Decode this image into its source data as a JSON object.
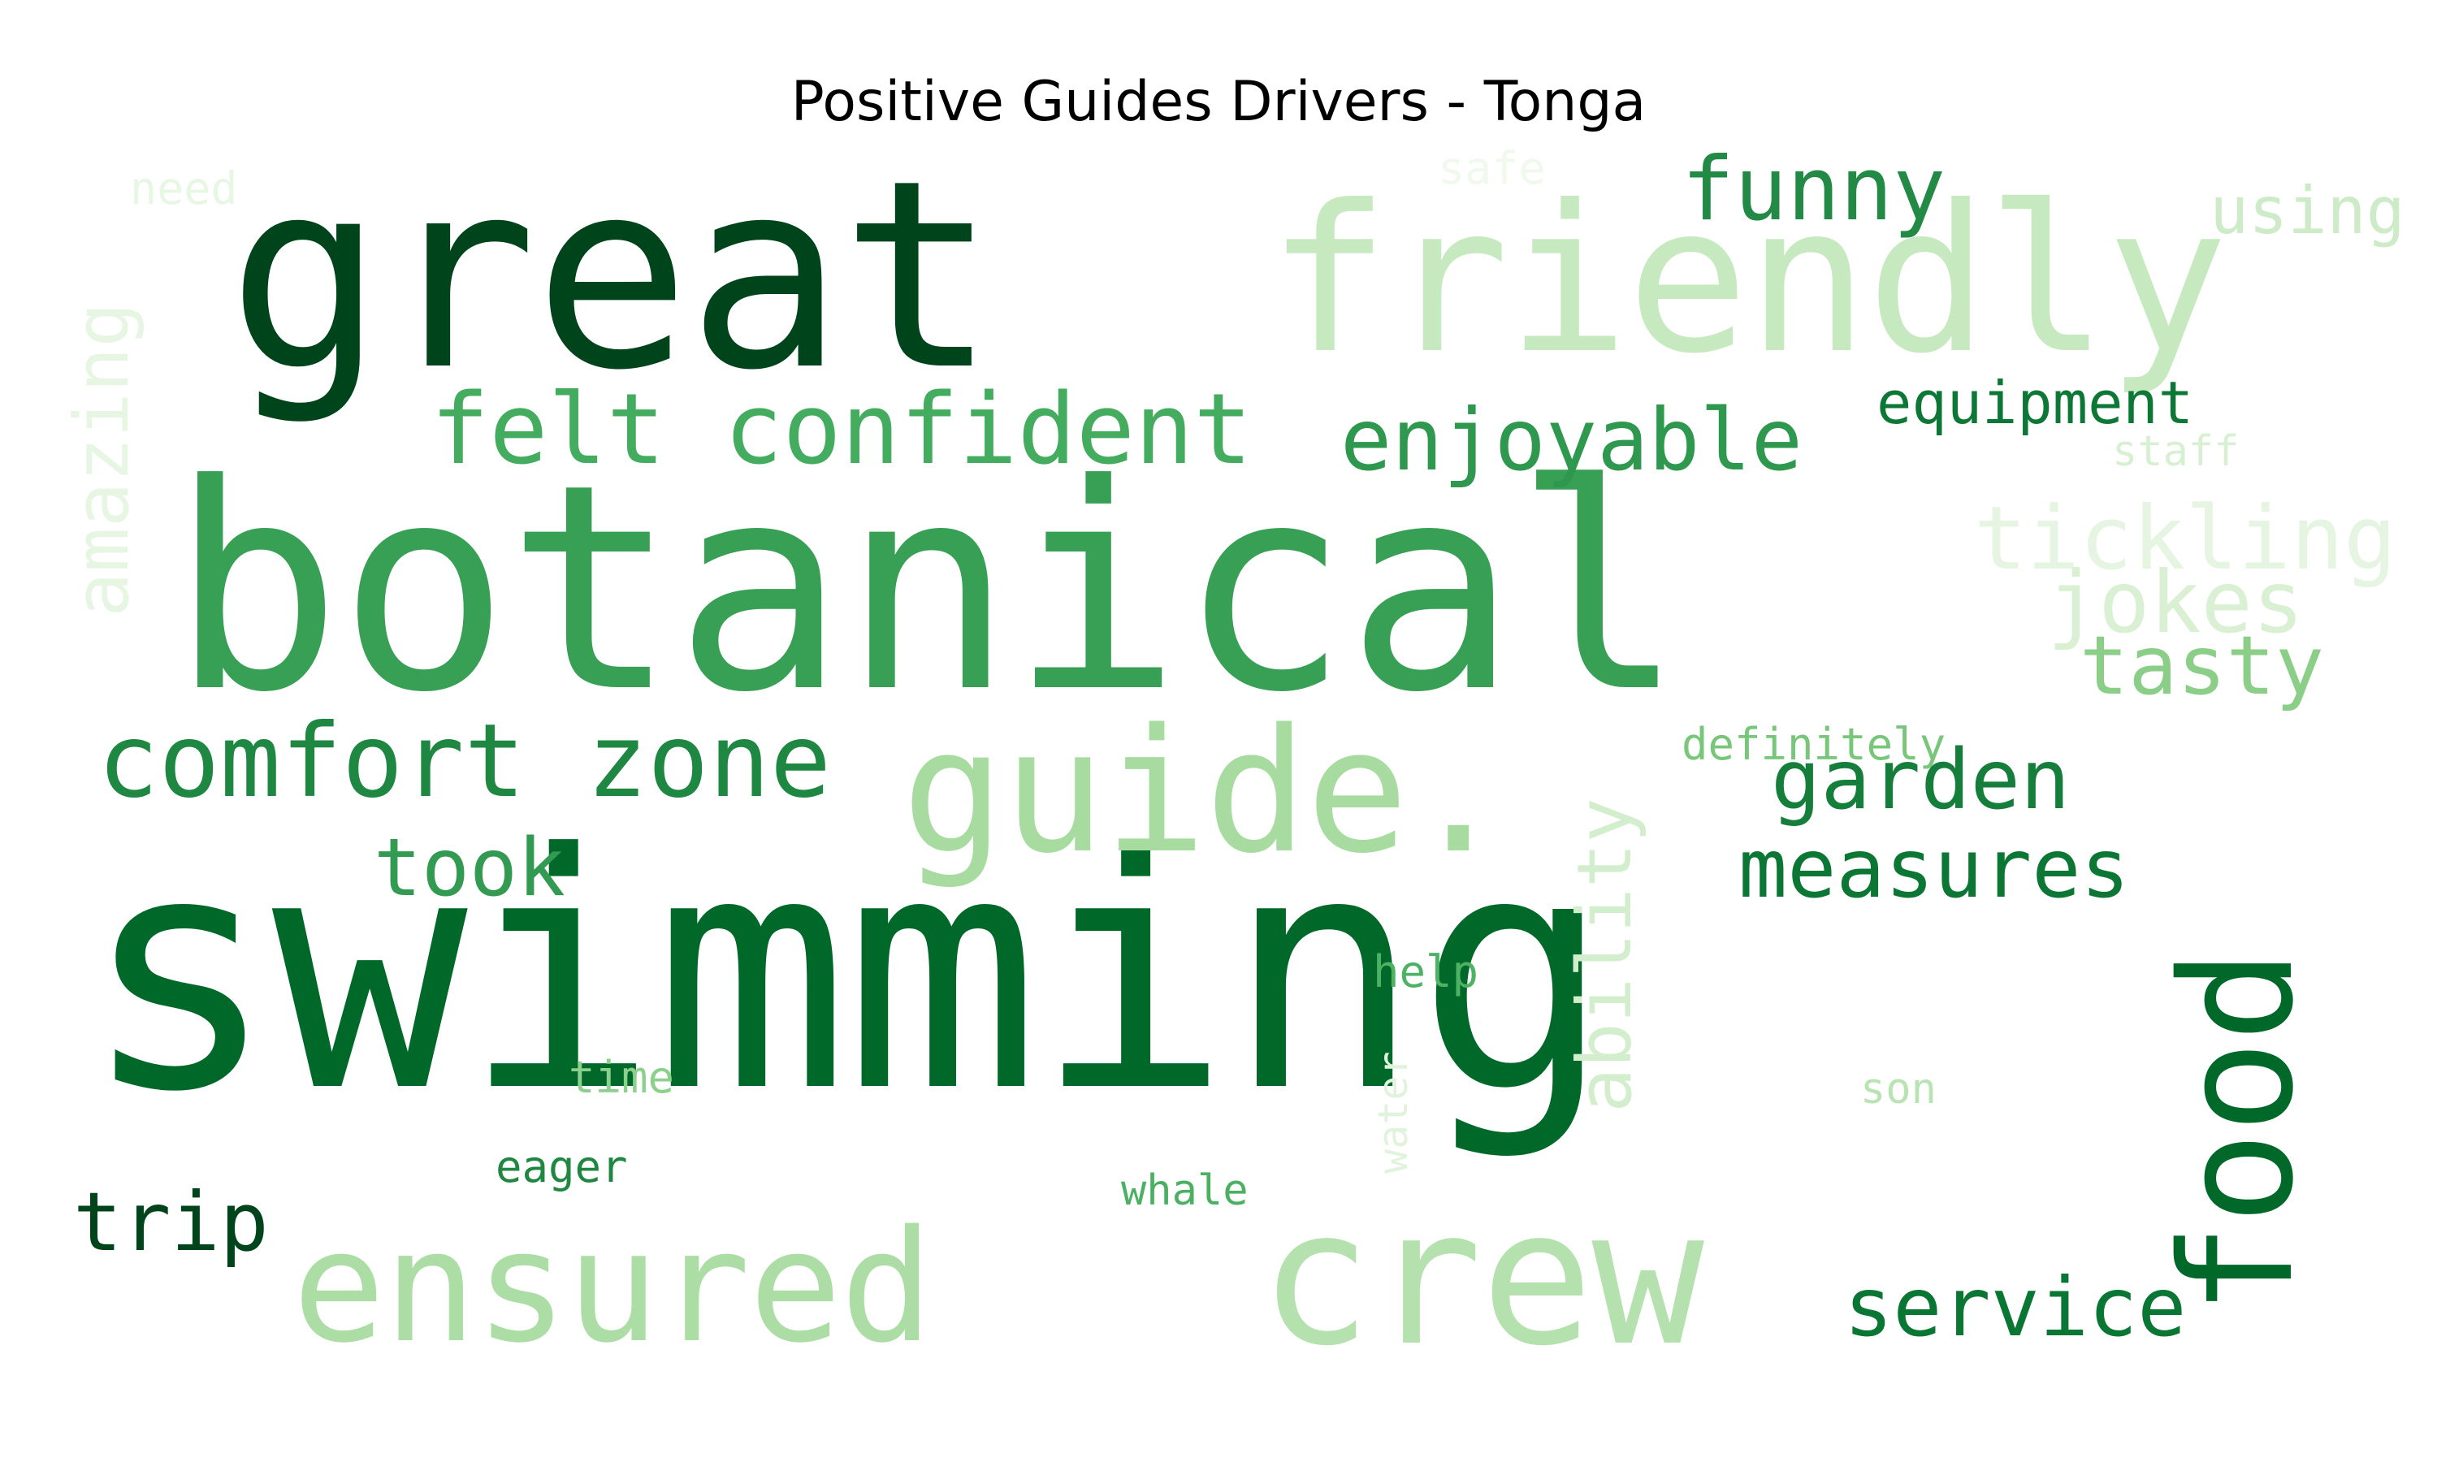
{
  "title": "Positive Guides Drivers - Tonga",
  "words": [
    {
      "text": "swimming",
      "color": "#00692a"
    },
    {
      "text": "botanical",
      "color": "#37a055"
    },
    {
      "text": "great",
      "color": "#00441b"
    },
    {
      "text": "friendly",
      "color": "#c7e9c0"
    },
    {
      "text": "guide.",
      "color": "#a7dba0"
    },
    {
      "text": "crew",
      "color": "#b4e1ad"
    },
    {
      "text": "ensured",
      "color": "#abdda5"
    },
    {
      "text": "food",
      "color": "#00692a"
    },
    {
      "text": "felt confident",
      "color": "#43ac5e"
    },
    {
      "text": "comfort zone",
      "color": "#1e8741"
    },
    {
      "text": "funny",
      "color": "#228a44"
    },
    {
      "text": "enjoyable",
      "color": "#2e984e"
    },
    {
      "text": "equipment",
      "color": "#0d7836"
    },
    {
      "text": "tickling",
      "color": "#e6f5e1"
    },
    {
      "text": "jokes",
      "color": "#d9f0d3"
    },
    {
      "text": "tasty",
      "color": "#8ace88"
    },
    {
      "text": "garden",
      "color": "#147e3a"
    },
    {
      "text": "measures",
      "color": "#0c7735"
    },
    {
      "text": "took",
      "color": "#339b51"
    },
    {
      "text": "trip",
      "color": "#00441b"
    },
    {
      "text": "service",
      "color": "#0a7633"
    },
    {
      "text": "amazing",
      "color": "#e7f6e3"
    },
    {
      "text": "ability",
      "color": "#d3eecd"
    },
    {
      "text": "using",
      "color": "#cdebc7"
    },
    {
      "text": "need",
      "color": "#e8f6e4"
    },
    {
      "text": "safe",
      "color": "#eff9ec"
    },
    {
      "text": "staff",
      "color": "#d8f0d2"
    },
    {
      "text": "definitely",
      "color": "#78c679"
    },
    {
      "text": "help",
      "color": "#4eb264"
    },
    {
      "text": "time",
      "color": "#8bd08b"
    },
    {
      "text": "eager",
      "color": "#1f8742"
    },
    {
      "text": "water",
      "color": "#e1f3dc"
    },
    {
      "text": "whale",
      "color": "#4bb062"
    },
    {
      "text": "son",
      "color": "#b8e3b2"
    }
  ]
}
